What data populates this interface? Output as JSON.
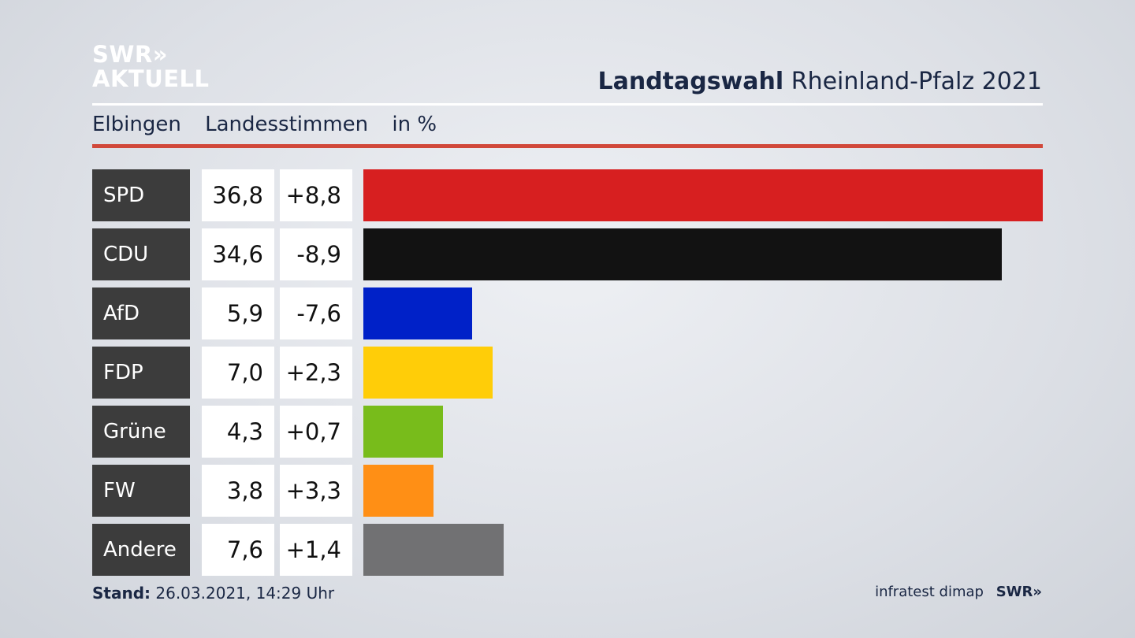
{
  "logo": {
    "line1": "SWR»",
    "line2": "AKTUELL"
  },
  "header": {
    "title_bold": "Landtagswahl",
    "title_rest": "Rheinland-Pfalz 2021"
  },
  "subheader": {
    "region": "Elbingen",
    "vote_type": "Landesstimmen",
    "unit": "in %"
  },
  "chart_data": {
    "type": "bar",
    "orientation": "horizontal",
    "categories": [
      "SPD",
      "CDU",
      "AfD",
      "FDP",
      "Grüne",
      "FW",
      "Andere"
    ],
    "values": [
      36.8,
      34.6,
      5.9,
      7.0,
      4.3,
      3.8,
      7.6
    ],
    "value_labels": [
      "36,8",
      "34,6",
      "5,9",
      "7,0",
      "4,3",
      "3,8",
      "7,6"
    ],
    "diff_labels": [
      "+8,8",
      "-8,9",
      "-7,6",
      "+2,3",
      "+0,7",
      "+3,3",
      "+1,4"
    ],
    "colors": [
      "#d71f20",
      "#121212",
      "#0021c8",
      "#ffcd08",
      "#78bc1b",
      "#ff8f15",
      "#717173"
    ],
    "xlim": [
      0,
      36.8
    ],
    "grid": false,
    "legend": "none"
  },
  "footer": {
    "stand_label": "Stand:",
    "stand_value": "26.03.2021, 14:29 Uhr",
    "source": "infratest dimap",
    "brand": "SWR»"
  }
}
